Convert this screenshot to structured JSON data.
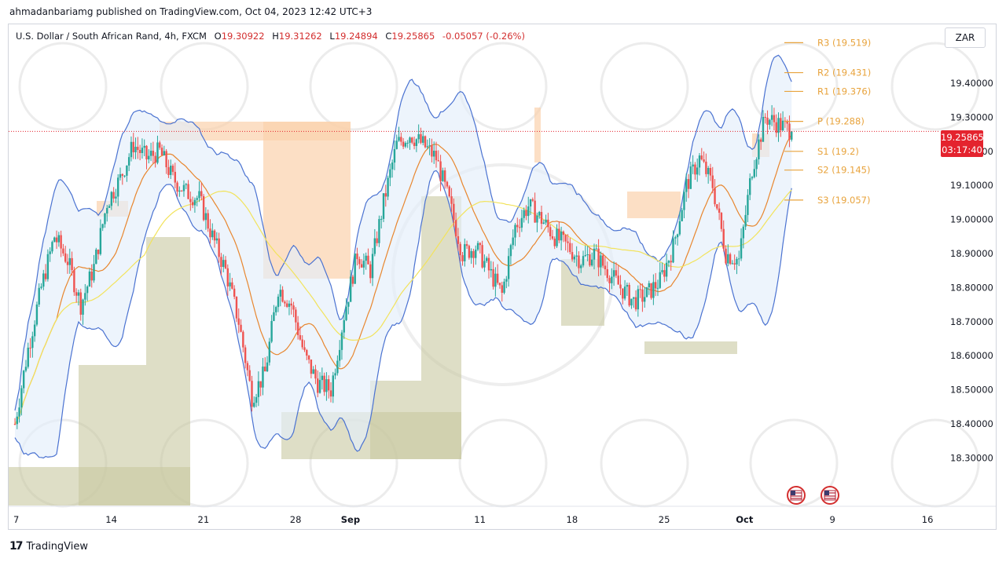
{
  "header": {
    "published_line": "ahmadanbariamg published on TradingView.com, Oct 04, 2023 12:42 UTC+3"
  },
  "legend": {
    "symbol": "U.S. Dollar / South African Rand, 4h, FXCM",
    "open_label": "O",
    "open": "19.30922",
    "high_label": "H",
    "high": "19.31262",
    "low_label": "L",
    "low": "19.24894",
    "close_label": "C",
    "close": "19.25865",
    "change": "-0.05057 (-0.26%)"
  },
  "currency_button": "ZAR",
  "last_price": {
    "value": "19.25865",
    "countdown": "03:17:40"
  },
  "footer": {
    "brand": "TradingView"
  },
  "colors": {
    "up": "#26a69a",
    "down": "#ef5350",
    "upper_band": "#4a72d1",
    "ma_fast": "#e8862e",
    "ma_slow": "#f2e35c",
    "pivot": "#e8a33c",
    "demand_zone": "#c8c8a0",
    "supply_zone": "#fbd1ad",
    "band_fill": "#e3eefa"
  },
  "chart_data": {
    "type": "candlestick",
    "y_axis": {
      "min": 18.25,
      "max": 19.55,
      "ticks": [
        "19.40000",
        "19.30000",
        "19.20000",
        "19.10000",
        "19.00000",
        "18.90000",
        "18.80000",
        "18.70000",
        "18.60000",
        "18.50000",
        "18.40000",
        "18.30000"
      ],
      "tick_values": [
        19.4,
        19.3,
        19.2,
        19.1,
        19.0,
        18.9,
        18.8,
        18.7,
        18.6,
        18.5,
        18.4,
        18.3
      ]
    },
    "x_axis": {
      "labels": [
        "7",
        "14",
        "21",
        "28",
        "Sep",
        "11",
        "18",
        "25",
        "Oct",
        "9",
        "16"
      ],
      "label_day_index": [
        0,
        7,
        14,
        21,
        25,
        35,
        42,
        49,
        55,
        62,
        69
      ],
      "start": "Aug 7",
      "bold": [
        "Sep",
        "Oct"
      ]
    },
    "pivots": [
      {
        "name": "R3",
        "value": 19.519,
        "label": "R3 (19.519)"
      },
      {
        "name": "R2",
        "value": 19.431,
        "label": "R2 (19.431)"
      },
      {
        "name": "R1",
        "value": 19.376,
        "label": "R1 (19.376)"
      },
      {
        "name": "P",
        "value": 19.288,
        "label": "P (19.288)"
      },
      {
        "name": "S1",
        "value": 19.2,
        "label": "S1 (19.2)"
      },
      {
        "name": "S2",
        "value": 19.145,
        "label": "S2 (19.145)"
      },
      {
        "name": "S3",
        "value": 19.057,
        "label": "S3 (19.057)"
      }
    ],
    "close_path": [
      [
        0,
        18.4
      ],
      [
        1,
        18.62
      ],
      [
        2,
        18.8
      ],
      [
        3,
        18.95
      ],
      [
        4,
        18.88
      ],
      [
        5,
        18.75
      ],
      [
        6,
        18.86
      ],
      [
        7,
        19.05
      ],
      [
        8,
        19.12
      ],
      [
        9,
        19.22
      ],
      [
        10,
        19.18
      ],
      [
        11,
        19.2
      ],
      [
        12,
        19.12
      ],
      [
        13,
        19.08
      ],
      [
        14,
        19.06
      ],
      [
        15,
        18.95
      ],
      [
        16,
        18.85
      ],
      [
        17,
        18.7
      ],
      [
        18,
        18.48
      ],
      [
        19,
        18.55
      ],
      [
        20,
        18.8
      ],
      [
        21,
        18.75
      ],
      [
        22,
        18.6
      ],
      [
        23,
        18.52
      ],
      [
        24,
        18.5
      ],
      [
        25,
        18.72
      ],
      [
        26,
        18.9
      ],
      [
        27,
        18.85
      ],
      [
        28,
        19.05
      ],
      [
        29,
        19.22
      ],
      [
        30,
        19.25
      ],
      [
        31,
        19.22
      ],
      [
        32,
        19.18
      ],
      [
        33,
        19.05
      ],
      [
        34,
        18.9
      ],
      [
        35,
        18.92
      ],
      [
        36,
        18.85
      ],
      [
        37,
        18.78
      ],
      [
        38,
        18.98
      ],
      [
        39,
        19.04
      ],
      [
        40,
        19.0
      ],
      [
        41,
        18.95
      ],
      [
        42,
        18.92
      ],
      [
        43,
        18.88
      ],
      [
        44,
        18.9
      ],
      [
        45,
        18.85
      ],
      [
        46,
        18.8
      ],
      [
        47,
        18.76
      ],
      [
        48,
        18.78
      ],
      [
        49,
        18.82
      ],
      [
        50,
        18.92
      ],
      [
        51,
        19.1
      ],
      [
        52,
        19.18
      ],
      [
        53,
        19.1
      ],
      [
        54,
        18.9
      ],
      [
        55,
        18.88
      ],
      [
        56,
        19.15
      ],
      [
        57,
        19.3
      ],
      [
        58,
        19.28
      ],
      [
        59,
        19.26
      ]
    ],
    "last_value": 19.25865
  }
}
